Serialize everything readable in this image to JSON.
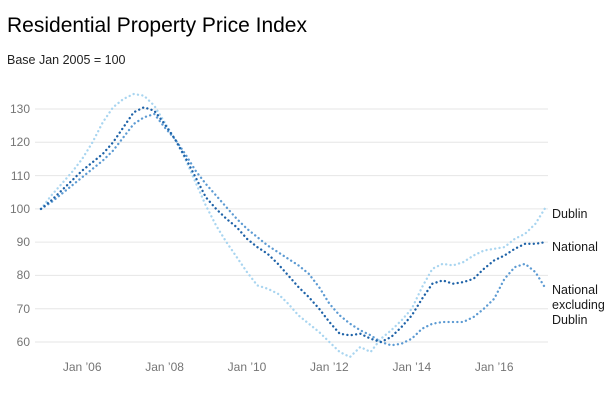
{
  "header": {
    "title": "Residential Property Price Index",
    "subtitle": "Base Jan 2005 = 100"
  },
  "colors": {
    "background": "#ffffff",
    "grid": "#e6e6e6",
    "tick_text": "#757575",
    "annotation_text": "#1a1a1a",
    "dublin_line": "#a9d5f0",
    "national_line": "#1f63a8",
    "ex_dublin_line": "#5d9bd3"
  },
  "chart_data": {
    "type": "line",
    "title": "Residential Property Price Index",
    "subtitle": "Base Jan 2005 = 100",
    "line_style": "dotted",
    "grid": true,
    "legend_position": "right-edge-annotations",
    "x_axis": {
      "start_year": 2005,
      "step_years": 0.25,
      "end_year": 2017.25,
      "tick_years": [
        2006,
        2008,
        2010,
        2012,
        2014,
        2016
      ],
      "tick_labels": [
        "Jan ’06",
        "Jan ’08",
        "Jan ’10",
        "Jan ’12",
        "Jan ’14",
        "Jan ’16"
      ]
    },
    "y_axis": {
      "min": 60,
      "max": 130,
      "ticks": [
        60,
        70,
        80,
        90,
        100,
        110,
        120,
        130
      ]
    },
    "series": [
      {
        "name": "Dublin",
        "color": "#a9d5f0",
        "values": [
          100,
          104,
          107.5,
          111,
          115,
          120,
          126,
          130.5,
          133,
          134.5,
          134,
          131,
          126,
          121,
          115,
          108,
          101,
          95,
          90,
          85.5,
          81,
          77,
          76,
          74.5,
          71.5,
          68,
          65.5,
          63,
          60,
          57,
          55.5,
          58.5,
          57,
          61,
          63.5,
          66.5,
          70,
          76.5,
          82,
          83.5,
          83,
          84,
          86,
          87.5,
          88,
          88.5,
          91,
          92.5,
          95.5,
          100.5
        ]
      },
      {
        "name": "National excluding Dublin",
        "color": "#5d9bd3",
        "values": [
          100,
          102,
          104.5,
          107,
          109.5,
          112,
          114.5,
          117.5,
          121.5,
          125.5,
          127.5,
          128.5,
          124.5,
          121,
          116.5,
          111.5,
          107.5,
          104,
          100.5,
          97,
          94,
          91.5,
          89,
          87,
          85,
          83,
          80.5,
          76.5,
          71.5,
          68,
          65.5,
          63.5,
          62,
          60,
          59,
          59.5,
          61,
          64,
          65.5,
          66,
          66,
          66,
          67.5,
          70,
          73,
          79,
          82.5,
          83.5,
          81,
          76
        ]
      },
      {
        "name": "National",
        "color": "#1f63a8",
        "values": [
          100,
          102.5,
          105.5,
          108.5,
          111.5,
          114,
          116.5,
          120,
          124.5,
          129,
          130.5,
          129.5,
          125.5,
          121,
          115.5,
          109.5,
          103.5,
          100,
          97,
          94.5,
          91,
          88.5,
          86.5,
          83.5,
          80,
          76.5,
          73.5,
          70,
          66,
          62.5,
          62,
          62.5,
          61,
          60,
          61.5,
          64.5,
          68,
          73,
          77.5,
          78.5,
          77.5,
          78,
          79,
          82,
          84.5,
          86,
          88,
          89.5,
          89.5,
          90
        ]
      }
    ],
    "annotations": [
      {
        "label": "Dublin",
        "series": "Dublin",
        "anchor_value": 98.5
      },
      {
        "label": "National",
        "series": "National",
        "anchor_value": 88.5
      },
      {
        "label": "National excluding Dublin",
        "series": "National excluding Dublin",
        "anchor_value": 75.5
      }
    ]
  }
}
